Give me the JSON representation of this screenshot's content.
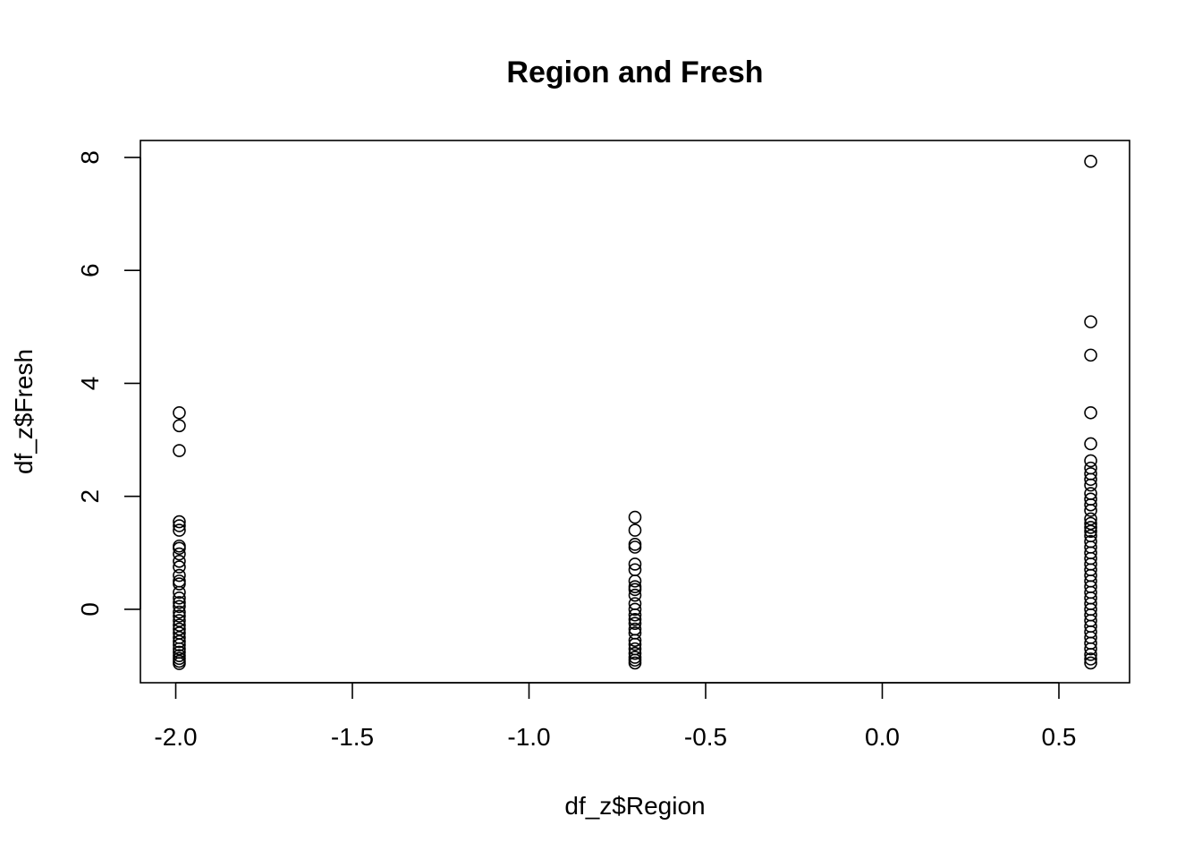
{
  "chart_data": {
    "type": "scatter",
    "title": "Region and Fresh",
    "xlabel": "df_z$Region",
    "ylabel": "df_z$Fresh",
    "xlim": [
      -2.1,
      0.7
    ],
    "ylim": [
      -1.3,
      8.3
    ],
    "xticks": [
      -2.0,
      -1.5,
      -1.0,
      -0.5,
      0.0,
      0.5
    ],
    "xtick_labels": [
      "-2.0",
      "-1.5",
      "-1.0",
      "-0.5",
      "0.0",
      "0.5"
    ],
    "yticks": [
      0,
      2,
      4,
      6,
      8
    ],
    "ytick_labels": [
      "0",
      "2",
      "4",
      "6",
      "8"
    ],
    "grid": false,
    "series": [
      {
        "x": -1.99,
        "y": [
          3.48,
          3.25,
          2.81,
          1.55,
          1.48,
          1.4,
          1.12,
          1.08,
          0.98,
          0.85,
          0.75,
          0.6,
          0.5,
          0.45,
          0.3,
          0.2,
          0.12,
          0.05,
          -0.05,
          -0.12,
          -0.2,
          -0.28,
          -0.35,
          -0.42,
          -0.5,
          -0.57,
          -0.63,
          -0.7,
          -0.76,
          -0.82,
          -0.87,
          -0.92,
          -0.96
        ]
      },
      {
        "x": -0.7,
        "y": [
          1.63,
          1.4,
          1.15,
          1.1,
          0.8,
          0.7,
          0.5,
          0.4,
          0.35,
          0.25,
          0.1,
          0.0,
          -0.1,
          -0.18,
          -0.25,
          -0.35,
          -0.42,
          -0.55,
          -0.62,
          -0.7,
          -0.78,
          -0.85,
          -0.9,
          -0.95
        ]
      },
      {
        "x": 0.59,
        "y": [
          7.93,
          5.09,
          4.5,
          3.48,
          2.93,
          2.63,
          2.5,
          2.4,
          2.3,
          2.2,
          2.05,
          1.95,
          1.85,
          1.75,
          1.6,
          1.52,
          1.45,
          1.38,
          1.3,
          1.2,
          1.1,
          1.0,
          0.9,
          0.8,
          0.7,
          0.6,
          0.5,
          0.4,
          0.3,
          0.2,
          0.1,
          0.0,
          -0.1,
          -0.2,
          -0.3,
          -0.4,
          -0.5,
          -0.6,
          -0.7,
          -0.8,
          -0.88,
          -0.95
        ]
      }
    ]
  }
}
